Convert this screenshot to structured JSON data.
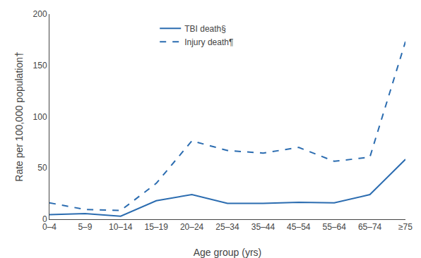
{
  "chart_data": {
    "type": "line",
    "categories": [
      "0–4",
      "5–9",
      "10–14",
      "15–19",
      "20–24",
      "25–34",
      "35–44",
      "45–54",
      "55–64",
      "65–74",
      "≥75"
    ],
    "series": [
      {
        "name": "TBI death§",
        "color": "#2B6CB0",
        "line_style": "solid",
        "values": [
          4.5,
          5.5,
          3.0,
          18.0,
          24.1,
          15.5,
          15.5,
          16.5,
          16.0,
          24.0,
          58.4
        ]
      },
      {
        "name": "Injury death¶",
        "color": "#2B6CB0",
        "line_style": "dashed",
        "values": [
          16.0,
          9.5,
          8.5,
          35.0,
          76.4,
          67.0,
          64.5,
          70.0,
          56.5,
          60.5,
          173.2
        ]
      }
    ],
    "xlabel": "Age group (yrs)",
    "ylabel": "Rate per 100,000 population†",
    "ylim": [
      0,
      200
    ],
    "yticks": [
      0,
      50,
      100,
      150,
      200
    ],
    "grid": false,
    "legend": "top"
  }
}
